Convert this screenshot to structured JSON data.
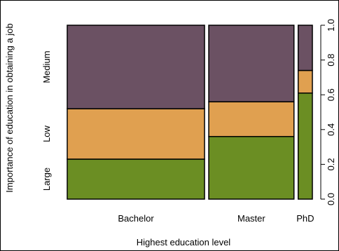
{
  "chart_data": {
    "type": "mosaic",
    "title": "",
    "xlabel": "Highest education level",
    "ylabel": "Importance of education in obtaining a job",
    "categories": [
      "Bachelor",
      "Master",
      "PhD"
    ],
    "category_widths": [
      0.58,
      0.36,
      0.06
    ],
    "levels": [
      "Large",
      "Low",
      "Medium"
    ],
    "series": [
      {
        "name": "Large",
        "values": [
          0.23,
          0.36,
          0.61
        ]
      },
      {
        "name": "Low",
        "values": [
          0.29,
          0.2,
          0.13
        ]
      },
      {
        "name": "Medium",
        "values": [
          0.48,
          0.44,
          0.26
        ]
      }
    ],
    "ylim": [
      0,
      1
    ],
    "y_ticks": [
      "0.0",
      "0.2",
      "0.4",
      "0.6",
      "0.8",
      "1.0"
    ],
    "y_tick_values": [
      0,
      0.2,
      0.4,
      0.6,
      0.8,
      1.0
    ],
    "colors": {
      "Large": "#6b8e23",
      "Low": "#e0a050",
      "Medium": "#6b5163"
    },
    "grid": false,
    "legend": "none"
  }
}
